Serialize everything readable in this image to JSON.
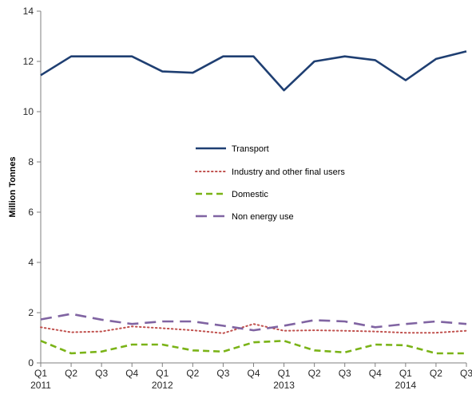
{
  "chart_data": {
    "type": "line",
    "ylabel": "Million Tonnes",
    "ylim": [
      0,
      14
    ],
    "yticks": [
      0,
      2,
      4,
      6,
      8,
      10,
      12,
      14
    ],
    "categories": [
      "Q1",
      "Q2",
      "Q3",
      "Q4",
      "Q1",
      "Q2",
      "Q3",
      "Q4",
      "Q1",
      "Q2",
      "Q3",
      "Q4",
      "Q1",
      "Q2",
      "Q3"
    ],
    "year_labels": [
      {
        "category_index": 0,
        "label": "2011"
      },
      {
        "category_index": 4,
        "label": "2012"
      },
      {
        "category_index": 8,
        "label": "2013"
      },
      {
        "category_index": 12,
        "label": "2014"
      }
    ],
    "grid": false,
    "legend_position": "center",
    "series": [
      {
        "name": "Transport",
        "color": "#1f3f72",
        "dash": "solid",
        "values": [
          11.45,
          12.2,
          12.2,
          12.2,
          11.6,
          11.55,
          12.2,
          12.2,
          10.85,
          12.0,
          12.2,
          12.05,
          11.25,
          12.1,
          12.4
        ]
      },
      {
        "name": "Industry and other final users",
        "color": "#c0504d",
        "dash": "dot",
        "values": [
          1.42,
          1.22,
          1.25,
          1.45,
          1.38,
          1.3,
          1.18,
          1.55,
          1.28,
          1.3,
          1.28,
          1.25,
          1.2,
          1.2,
          1.28
        ]
      },
      {
        "name": "Domestic",
        "color": "#7ab317",
        "dash": "dash",
        "values": [
          0.88,
          0.38,
          0.45,
          0.73,
          0.73,
          0.5,
          0.45,
          0.82,
          0.88,
          0.5,
          0.42,
          0.73,
          0.7,
          0.38,
          0.38
        ]
      },
      {
        "name": "Non energy use",
        "color": "#8064a2",
        "dash": "longdash",
        "values": [
          1.73,
          1.95,
          1.72,
          1.55,
          1.65,
          1.65,
          1.48,
          1.3,
          1.48,
          1.7,
          1.65,
          1.42,
          1.55,
          1.65,
          1.55
        ]
      }
    ]
  }
}
